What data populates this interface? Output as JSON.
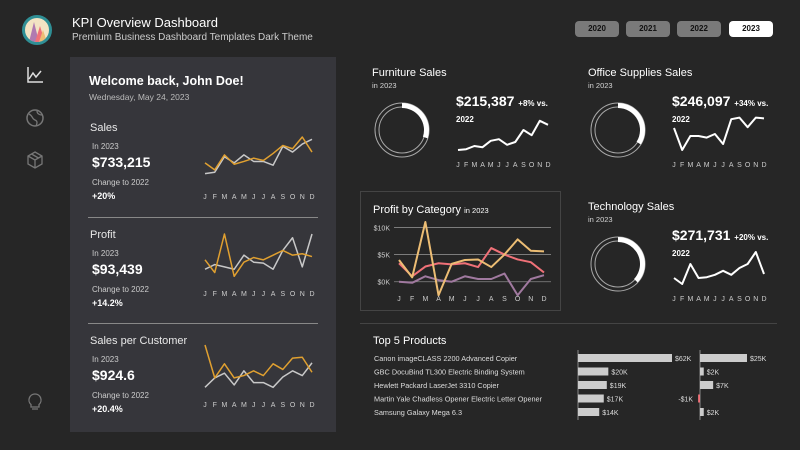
{
  "header": {
    "title": "KPI Overview Dashboard",
    "subtitle": "Premium Business Dashboard Templates Dark Theme",
    "years": [
      "2020",
      "2021",
      "2022",
      "2023"
    ],
    "selected_year": "2023"
  },
  "sidebar": [
    "chart-line-icon",
    "globe-icon",
    "box-icon",
    "lightbulb-icon"
  ],
  "colors": {
    "bg": "#262626",
    "panel": "#36363b",
    "current": "#e0a030",
    "previous": "#c8c8c8",
    "furniture": "#a0799f",
    "office": "#f07178",
    "technology": "#ecbd74"
  },
  "months": [
    "J",
    "F",
    "M",
    "A",
    "M",
    "J",
    "J",
    "A",
    "S",
    "O",
    "N",
    "D"
  ],
  "welcome": {
    "greeting": "Welcome back, John Doe!",
    "date": "Wednesday, May 24, 2023"
  },
  "kpis": [
    {
      "label": "Sales",
      "period": "In 2023",
      "value": "$733,215",
      "change_label": "Change to 2022",
      "change": "+20%",
      "trend_2023": [
        45,
        30,
        62,
        42,
        48,
        55,
        50,
        65,
        82,
        75,
        100,
        68
      ],
      "trend_2022": [
        22,
        25,
        58,
        45,
        62,
        48,
        48,
        40,
        80,
        68,
        85,
        95
      ]
    },
    {
      "label": "Profit",
      "period": "In 2023",
      "value": "$93,439",
      "change_label": "Change to 2022",
      "change": "+14.2%",
      "trend_2023": [
        45,
        18,
        100,
        10,
        40,
        50,
        45,
        55,
        65,
        55,
        58,
        52
      ],
      "trend_2022": [
        25,
        35,
        30,
        25,
        55,
        40,
        38,
        25,
        65,
        92,
        30,
        100
      ]
    },
    {
      "label": "Sales per Customer",
      "period": "In 2023",
      "value": "$924.6",
      "change_label": "Change to 2022",
      "change": "+20.4%",
      "trend_2023": [
        100,
        30,
        60,
        30,
        35,
        45,
        35,
        60,
        48,
        72,
        74,
        42
      ],
      "trend_2022": [
        10,
        30,
        40,
        15,
        45,
        20,
        20,
        10,
        32,
        45,
        35,
        62
      ]
    }
  ],
  "cards": [
    {
      "title": "Furniture Sales",
      "period": "in 2023",
      "value": "$215,387",
      "change": "+8% vs. 2022",
      "share": 0.3,
      "color": "#a0799f",
      "trend": [
        5,
        7,
        15,
        12,
        28,
        32,
        18,
        25,
        55,
        42,
        78,
        68
      ]
    },
    {
      "title": "Office Supplies Sales",
      "period": "in 2023",
      "value": "$246,097",
      "change": "+34% vs. 2022",
      "share": 0.34,
      "color": "#f07178",
      "trend": [
        60,
        5,
        40,
        40,
        36,
        45,
        20,
        82,
        86,
        62,
        86,
        84
      ]
    },
    {
      "title": "Technology Sales",
      "period": "in 2023",
      "value": "$271,731",
      "change": "+20% vs. 2022",
      "share": 0.37,
      "color": "#ecbd74",
      "trend": [
        20,
        5,
        55,
        20,
        22,
        28,
        38,
        28,
        45,
        55,
        85,
        30
      ]
    }
  ],
  "profit_chart": {
    "title": "Profit by Category",
    "period": "in 2023",
    "y_ticks": [
      "$10K",
      "$5K",
      "$0K"
    ],
    "ylim": [
      -3,
      11
    ],
    "series": [
      {
        "color": "#a0799f",
        "values": [
          0,
          -0.2,
          1,
          0.3,
          0,
          1,
          0.5,
          0.5,
          1.5,
          -2.5,
          0.5,
          1.2
        ]
      },
      {
        "color": "#f07178",
        "values": [
          3.4,
          1,
          2.8,
          3.4,
          3.2,
          3.4,
          2.7,
          6.2,
          5,
          4.1,
          3.6,
          1.7
        ]
      },
      {
        "color": "#ecbd74",
        "values": [
          4,
          0.8,
          11,
          -2.5,
          3.3,
          4,
          4.1,
          2.7,
          5,
          7.8,
          5.7,
          5.6
        ]
      }
    ]
  },
  "top_products": {
    "title": "Top 5 Products",
    "items": [
      {
        "name": "Canon imageCLASS 2200 Advanced Copier",
        "sales": 62,
        "sales_label": "$62K",
        "profit": 25,
        "profit_label": "$25K"
      },
      {
        "name": "GBC DocuBind TL300 Electric Binding System",
        "sales": 20,
        "sales_label": "$20K",
        "profit": 2,
        "profit_label": "$2K"
      },
      {
        "name": "Hewlett Packard LaserJet 3310 Copier",
        "sales": 19,
        "sales_label": "$19K",
        "profit": 7,
        "profit_label": "$7K"
      },
      {
        "name": "Martin Yale Chadless Opener Electric Letter Opener",
        "sales": 17,
        "sales_label": "$17K",
        "profit": -1,
        "profit_label": "-$1K"
      },
      {
        "name": "Samsung Galaxy Mega 6.3",
        "sales": 14,
        "sales_label": "$14K",
        "profit": 2,
        "profit_label": "$2K"
      }
    ]
  }
}
